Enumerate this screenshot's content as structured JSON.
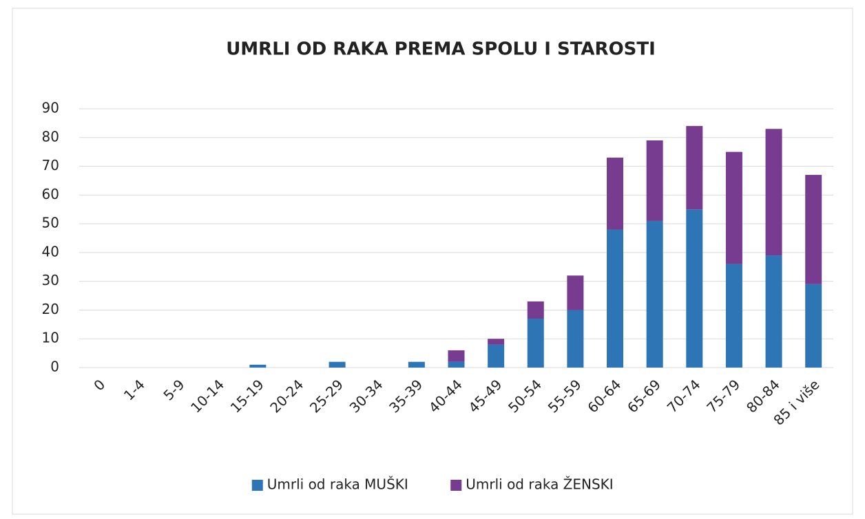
{
  "chart_data": {
    "type": "stacked_bar",
    "title": "UMRLI OD RAKA PREMA SPOLU I STAROSTI",
    "categories": [
      "0",
      "1-4",
      "5-9",
      "10-14",
      "15-19",
      "20-24",
      "25-29",
      "30-34",
      "35-39",
      "40-44",
      "45-49",
      "50-54",
      "55-59",
      "60-64",
      "65-69",
      "70-74",
      "75-79",
      "80-84",
      "85 i više"
    ],
    "series": [
      {
        "name": "Umrli od raka MUŠKI",
        "color": "#2e75b6",
        "values": [
          0,
          0,
          0,
          0,
          1,
          0,
          2,
          0,
          2,
          2,
          8,
          17,
          20,
          48,
          51,
          55,
          36,
          39,
          29
        ]
      },
      {
        "name": "Umrli od raka ŽENSKI",
        "color": "#773b8f",
        "values": [
          0,
          0,
          0,
          0,
          0,
          0,
          0,
          0,
          0,
          4,
          2,
          6,
          12,
          25,
          28,
          29,
          39,
          44,
          38
        ]
      }
    ],
    "ylim": [
      0,
      90
    ],
    "yticks": [
      0,
      10,
      20,
      30,
      40,
      50,
      60,
      70,
      80,
      90
    ],
    "grid": true,
    "legend": "bottom"
  }
}
